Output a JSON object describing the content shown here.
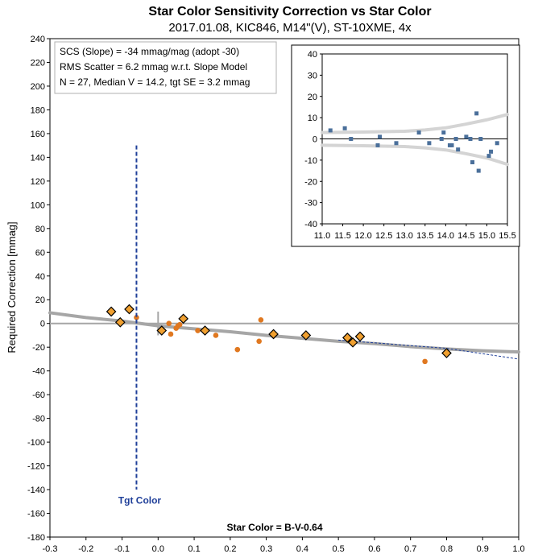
{
  "chart_data": [
    {
      "type": "scatter",
      "title": "Star Color Sensitivity Correction vs Star Color",
      "subtitle": "2017.01.08, KIC846, M14\"(V), ST-10XME, 4x",
      "ylabel": "Required Correction [mmag]",
      "xlabel": "Star Color = B-V-0.64",
      "xlim": [
        -0.3,
        1.0
      ],
      "ylim": [
        -180,
        240
      ],
      "xticks": [
        "-0.3",
        "-0.2",
        "-0.1",
        "0.0",
        "0.1",
        "0.2",
        "0.3",
        "0.4",
        "0.5",
        "0.6",
        "0.7",
        "0.8",
        "0.9",
        "1.0"
      ],
      "yticks": [
        "240",
        "220",
        "200",
        "180",
        "160",
        "140",
        "120",
        "100",
        "80",
        "60",
        "40",
        "20",
        "0",
        "-20",
        "-40",
        "-60",
        "-80",
        "-100",
        "-120",
        "-140",
        "-160",
        "-180"
      ],
      "annotations": [
        "SCS (Slope)  =  -34 mmag/mag (adopt -30)",
        "RMS Scatter = 6.2 mmag w.r.t. Slope Model",
        "N = 27,  Median V = 14.2, tgt SE = 3.2 mmag"
      ],
      "target_label": "Tgt Color",
      "target_x": -0.06,
      "grid": false,
      "series": [
        {
          "kind": "diamonds",
          "color": "#f0a030",
          "points": [
            [
              -0.13,
              10
            ],
            [
              -0.08,
              12
            ],
            [
              -0.105,
              1
            ],
            [
              0.01,
              -6
            ],
            [
              0.07,
              4
            ],
            [
              0.13,
              -6
            ],
            [
              0.32,
              -9
            ],
            [
              0.41,
              -10
            ],
            [
              0.525,
              -12
            ],
            [
              0.54,
              -16
            ],
            [
              0.56,
              -11
            ],
            [
              0.8,
              -25
            ]
          ]
        },
        {
          "kind": "dots",
          "color": "#e07820",
          "points": [
            [
              -0.06,
              5
            ],
            [
              0.03,
              0
            ],
            [
              0.035,
              -9
            ],
            [
              0.05,
              -4
            ],
            [
              0.055,
              -2
            ],
            [
              0.06,
              -1
            ],
            [
              0.11,
              -6
            ],
            [
              0.16,
              -10
            ],
            [
              0.22,
              -22
            ],
            [
              0.28,
              -15
            ],
            [
              0.285,
              3
            ],
            [
              0.74,
              -32
            ]
          ]
        },
        {
          "kind": "fit-curve",
          "color": "#a6a6a6",
          "points": [
            [
              -0.3,
              9
            ],
            [
              -0.2,
              5
            ],
            [
              -0.1,
              2
            ],
            [
              0.0,
              -2
            ],
            [
              0.1,
              -4.5
            ],
            [
              0.2,
              -7
            ],
            [
              0.3,
              -10
            ],
            [
              0.4,
              -12.5
            ],
            [
              0.5,
              -15
            ],
            [
              0.6,
              -17
            ],
            [
              0.7,
              -19.5
            ],
            [
              0.8,
              -21.5
            ],
            [
              0.9,
              -23
            ],
            [
              1.0,
              -24
            ]
          ]
        },
        {
          "kind": "slope-line",
          "color": "#1f3f99",
          "points": [
            [
              0.5,
              -14
            ],
            [
              0.8,
              -21
            ],
            [
              1.0,
              -30
            ]
          ]
        }
      ]
    },
    {
      "type": "scatter",
      "xlim": [
        11.0,
        15.5
      ],
      "ylim": [
        -40,
        40
      ],
      "xticks": [
        "11.0",
        "11.5",
        "12.0",
        "12.5",
        "13.0",
        "13.5",
        "14.0",
        "14.5",
        "15.0",
        "15.5"
      ],
      "yticks": [
        "40",
        "30",
        "20",
        "10",
        "0",
        "-10",
        "-20",
        "-30",
        "-40"
      ],
      "series": [
        {
          "kind": "squares",
          "color": "#4a6f9a",
          "points": [
            [
              11.2,
              4
            ],
            [
              11.55,
              5
            ],
            [
              11.7,
              0
            ],
            [
              12.35,
              -3
            ],
            [
              12.4,
              1
            ],
            [
              12.8,
              -2
            ],
            [
              13.35,
              3
            ],
            [
              13.6,
              -2
            ],
            [
              13.9,
              0
            ],
            [
              13.95,
              3
            ],
            [
              14.1,
              -3
            ],
            [
              14.15,
              -3
            ],
            [
              14.25,
              0
            ],
            [
              14.3,
              -5
            ],
            [
              14.5,
              1
            ],
            [
              14.6,
              0
            ],
            [
              14.65,
              -11
            ],
            [
              14.75,
              12
            ],
            [
              14.8,
              -15
            ],
            [
              14.85,
              0
            ],
            [
              15.05,
              -8
            ],
            [
              15.1,
              -6
            ],
            [
              15.25,
              -2
            ]
          ]
        },
        {
          "kind": "envelope",
          "color": "#d4d4d4",
          "upper": [
            [
              11.0,
              3
            ],
            [
              12.0,
              3.2
            ],
            [
              13.0,
              3.6
            ],
            [
              13.5,
              4.2
            ],
            [
              14.0,
              5.2
            ],
            [
              14.5,
              7
            ],
            [
              15.0,
              9
            ],
            [
              15.5,
              11.5
            ]
          ],
          "lower": [
            [
              11.0,
              -3
            ],
            [
              12.0,
              -3.2
            ],
            [
              13.0,
              -3.6
            ],
            [
              13.5,
              -4.2
            ],
            [
              14.0,
              -5.2
            ],
            [
              14.5,
              -7
            ],
            [
              15.0,
              -9
            ],
            [
              15.5,
              -12
            ]
          ]
        }
      ]
    }
  ]
}
